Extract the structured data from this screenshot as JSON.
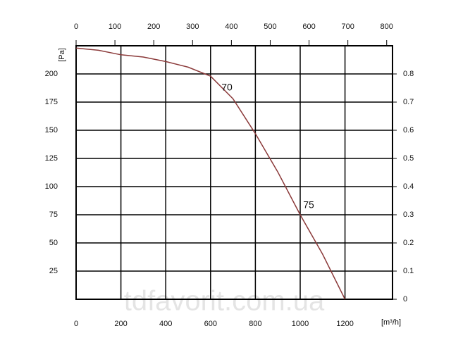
{
  "chart_data": {
    "type": "line",
    "x_label": "[m³/h]",
    "y_label": "[Pa]",
    "x": [
      0,
      100,
      200,
      300,
      400,
      500,
      600,
      700,
      800,
      900,
      1000,
      1100,
      1200
    ],
    "values": [
      223,
      221,
      217,
      215,
      211,
      206,
      198,
      178,
      147,
      113,
      75,
      40,
      0
    ],
    "color": "#8b3a3a",
    "annotations": [
      "70",
      "75"
    ],
    "xlim": [
      0,
      1412
    ],
    "xticks": [
      0,
      200,
      400,
      600,
      800,
      1000,
      1200
    ],
    "x2lim": [
      0,
      815
    ],
    "x2ticks": [
      0,
      100,
      200,
      300,
      400,
      500,
      600,
      700,
      800
    ],
    "ylim": [
      0,
      225
    ],
    "yticks": [
      25,
      50,
      75,
      100,
      125,
      150,
      175,
      200
    ],
    "y2lim": [
      0,
      0.9
    ],
    "y2ticks": [
      0,
      0.1,
      0.2,
      0.3,
      0.4,
      0.5,
      0.6,
      0.7,
      0.8
    ],
    "grid": true,
    "watermark": "tdfavorit.com.ua"
  }
}
